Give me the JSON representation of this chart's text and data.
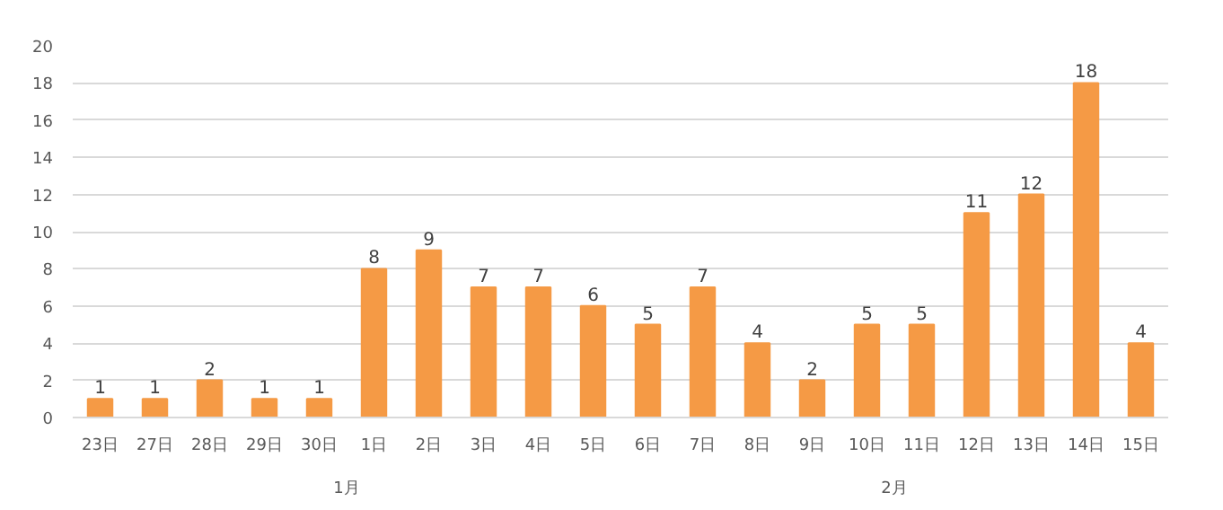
{
  "chart_data": {
    "type": "bar",
    "categories": [
      "23日",
      "27日",
      "28日",
      "29日",
      "30日",
      "1日",
      "2日",
      "3日",
      "4日",
      "5日",
      "6日",
      "7日",
      "8日",
      "9日",
      "10日",
      "11日",
      "12日",
      "13日",
      "14日",
      "15日"
    ],
    "values": [
      1,
      1,
      2,
      1,
      1,
      8,
      9,
      7,
      7,
      6,
      5,
      7,
      4,
      2,
      5,
      5,
      11,
      12,
      18,
      4
    ],
    "color": "#f59a45",
    "ylim": [
      0,
      20
    ],
    "yticks": [
      0,
      2,
      4,
      6,
      8,
      10,
      12,
      14,
      16,
      18,
      20
    ],
    "grid": "y",
    "data_labels": true,
    "annotations": [
      "1月",
      "2月"
    ]
  }
}
